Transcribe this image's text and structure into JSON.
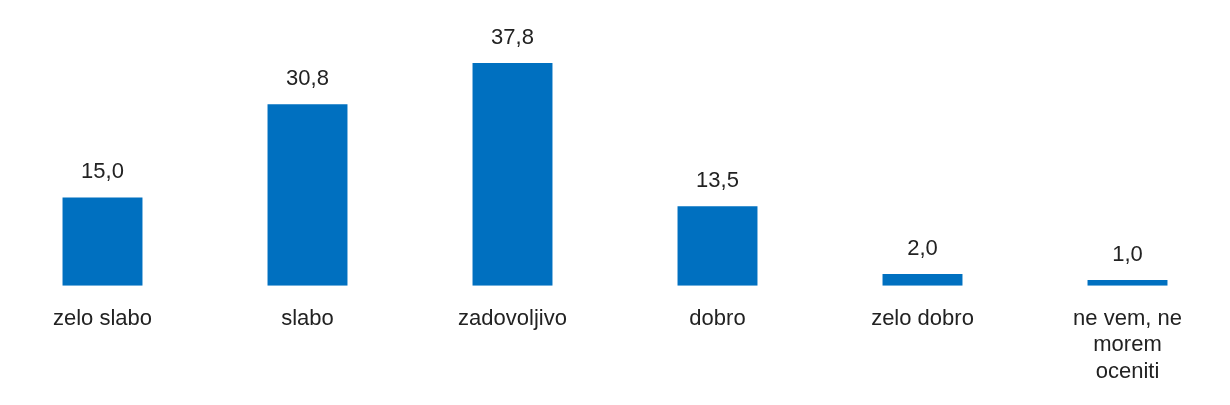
{
  "chart_data": {
    "type": "bar",
    "categories": [
      "zelo slabo",
      "slabo",
      "zadovoljivo",
      "dobro",
      "zelo dobro",
      "ne vem, ne morem oceniti"
    ],
    "values": [
      15.0,
      30.8,
      37.8,
      13.5,
      2.0,
      1.0
    ],
    "value_labels": [
      "15,0",
      "30,8",
      "37,8",
      "13,5",
      "2,0",
      "1,0"
    ],
    "color": "#0070c0",
    "tick_labels": "x",
    "grid": false,
    "legend": false
  }
}
